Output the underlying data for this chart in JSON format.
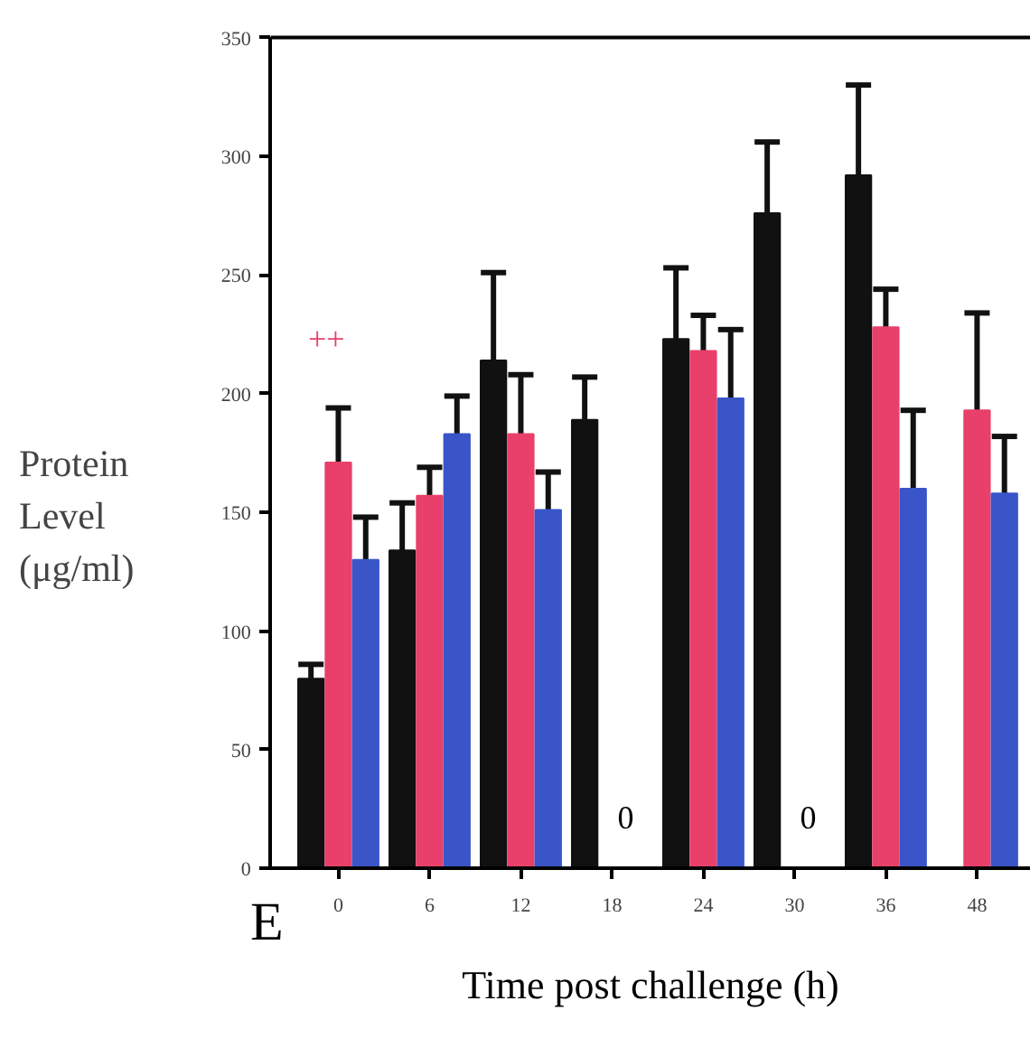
{
  "chart_data": {
    "type": "bar",
    "xlabel": "Time post challenge (h)",
    "ylabel": "Protein Level (μg/ml)",
    "categories": [
      "0",
      "6",
      "12",
      "18",
      "24",
      "30",
      "36",
      "48"
    ],
    "series": [
      {
        "color": "#111111",
        "values": [
          80,
          134,
          214,
          189,
          223,
          276,
          292,
          null
        ],
        "errors": [
          6,
          20,
          37,
          18,
          30,
          30,
          38,
          null
        ]
      },
      {
        "color": "#e8406a",
        "values": [
          171,
          157,
          183,
          0,
          218,
          0,
          228,
          193
        ],
        "errors": [
          23,
          12,
          25,
          null,
          15,
          null,
          16,
          41
        ]
      },
      {
        "color": "#3a55c8",
        "values": [
          130,
          183,
          151,
          0,
          198,
          0,
          160,
          158
        ],
        "errors": [
          18,
          16,
          16,
          null,
          29,
          null,
          33,
          24
        ]
      }
    ],
    "ylim": [
      0,
      350
    ],
    "yticks": [
      0,
      50,
      100,
      150,
      200,
      250,
      300,
      350
    ],
    "grid": false,
    "annotations": [
      "E",
      "++",
      {
        "text": "0",
        "x": "18",
        "y": 0
      },
      {
        "text": "0",
        "x": "30",
        "y": 0
      }
    ]
  }
}
